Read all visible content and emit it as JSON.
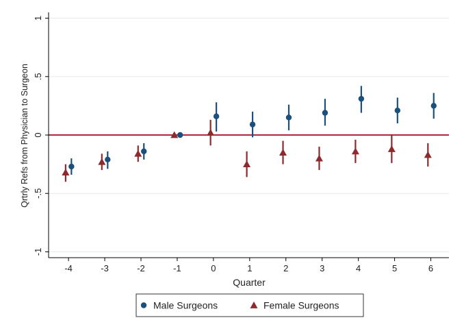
{
  "chart_data": {
    "type": "scatter",
    "title": "",
    "xlabel": "Quarter",
    "ylabel": "Qrtrly Refs from Physician to Surgeon",
    "x_ticks": [
      "-4",
      "-3",
      "-2",
      "-1",
      "0",
      "1",
      "2",
      "3",
      "4",
      "5",
      "6"
    ],
    "y_ticks": [
      "-1",
      "-.5",
      "0",
      ".5",
      "1"
    ],
    "xlim": [
      -4.55,
      6.5
    ],
    "ylim": [
      -1.05,
      1.05
    ],
    "grid": "horizontal",
    "reference_line": {
      "y": 0,
      "color": "#b22340"
    },
    "legend": {
      "position": "bottom"
    },
    "series": [
      {
        "name": "Male Surgeons",
        "color": "#1b4f7c",
        "marker": "circle",
        "points": [
          {
            "x": -4,
            "y": -0.27,
            "lo": -0.34,
            "hi": -0.2
          },
          {
            "x": -3,
            "y": -0.21,
            "lo": -0.29,
            "hi": -0.14
          },
          {
            "x": -2,
            "y": -0.14,
            "lo": -0.21,
            "hi": -0.07
          },
          {
            "x": -1,
            "y": 0.0,
            "lo": 0.0,
            "hi": 0.0
          },
          {
            "x": 0,
            "y": 0.16,
            "lo": 0.03,
            "hi": 0.28
          },
          {
            "x": 1,
            "y": 0.09,
            "lo": -0.02,
            "hi": 0.2
          },
          {
            "x": 2,
            "y": 0.15,
            "lo": 0.04,
            "hi": 0.26
          },
          {
            "x": 3,
            "y": 0.19,
            "lo": 0.08,
            "hi": 0.31
          },
          {
            "x": 4,
            "y": 0.31,
            "lo": 0.19,
            "hi": 0.42
          },
          {
            "x": 5,
            "y": 0.21,
            "lo": 0.1,
            "hi": 0.32
          },
          {
            "x": 6,
            "y": 0.25,
            "lo": 0.14,
            "hi": 0.36
          }
        ]
      },
      {
        "name": "Female Surgeons",
        "color": "#8e2a2e",
        "marker": "triangle",
        "points": [
          {
            "x": -4,
            "y": -0.32,
            "lo": -0.4,
            "hi": -0.25
          },
          {
            "x": -3,
            "y": -0.23,
            "lo": -0.3,
            "hi": -0.16
          },
          {
            "x": -2,
            "y": -0.16,
            "lo": -0.23,
            "hi": -0.09
          },
          {
            "x": -1,
            "y": 0.0,
            "lo": 0.0,
            "hi": 0.0
          },
          {
            "x": 0,
            "y": 0.02,
            "lo": -0.09,
            "hi": 0.13
          },
          {
            "x": 1,
            "y": -0.25,
            "lo": -0.36,
            "hi": -0.14
          },
          {
            "x": 2,
            "y": -0.15,
            "lo": -0.25,
            "hi": -0.05
          },
          {
            "x": 3,
            "y": -0.2,
            "lo": -0.3,
            "hi": -0.1
          },
          {
            "x": 4,
            "y": -0.14,
            "lo": -0.24,
            "hi": -0.04
          },
          {
            "x": 5,
            "y": -0.12,
            "lo": -0.24,
            "hi": 0.0
          },
          {
            "x": 6,
            "y": -0.17,
            "lo": -0.27,
            "hi": -0.07
          }
        ]
      }
    ]
  }
}
